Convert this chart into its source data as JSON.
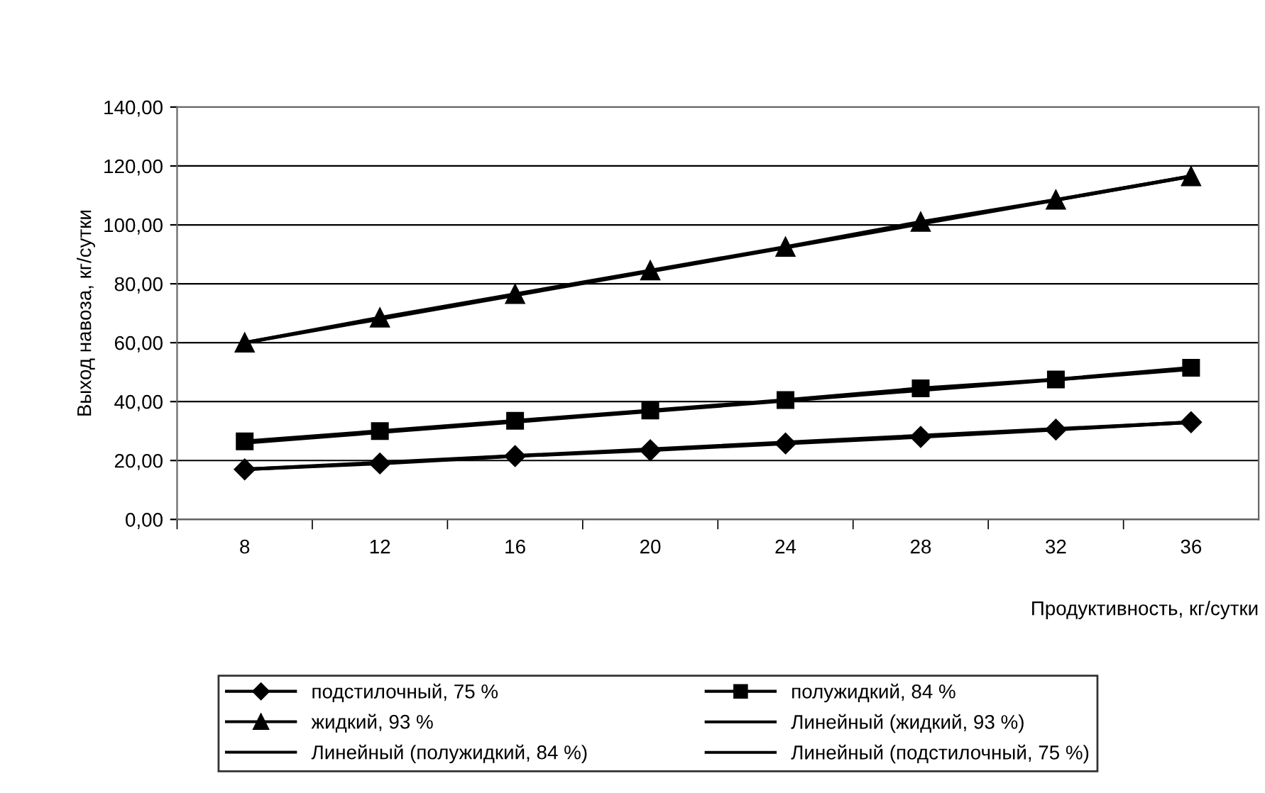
{
  "chart_data": {
    "type": "line",
    "xlabel": "Продуктивность, кг/сутки",
    "ylabel": "Выход навоза, кг/сутки",
    "categories": [
      "8",
      "12",
      "16",
      "20",
      "24",
      "28",
      "32",
      "36"
    ],
    "ylim": [
      0,
      140
    ],
    "yticks": [
      {
        "value": 0,
        "label": "0,00"
      },
      {
        "value": 20,
        "label": "20,00"
      },
      {
        "value": 40,
        "label": "40,00"
      },
      {
        "value": 60,
        "label": "60,00"
      },
      {
        "value": 80,
        "label": "80,00"
      },
      {
        "value": 100,
        "label": "100,00"
      },
      {
        "value": 120,
        "label": "120,00"
      },
      {
        "value": 140,
        "label": "140,00"
      }
    ],
    "grid": "y",
    "legend": "bottom",
    "series": [
      {
        "name": "подстилочный, 75 %",
        "color": "#000000",
        "marker": "diamond",
        "values": [
          17,
          19,
          21.5,
          23.5,
          25.8,
          28,
          30.5,
          33
        ]
      },
      {
        "name": "полужидкий, 84 %",
        "color": "#000000",
        "marker": "square",
        "values": [
          26.5,
          30,
          33.5,
          37,
          40.5,
          44.5,
          47.5,
          51.5
        ]
      },
      {
        "name": "жидкий, 93 %",
        "color": "#000000",
        "marker": "triangle",
        "values": [
          60,
          68.5,
          76.5,
          84.5,
          92.5,
          101,
          108.5,
          116.5
        ]
      },
      {
        "name": "Линейный (жидкий, 93 %)",
        "color": "#000000",
        "x": [
          "8",
          "36"
        ],
        "values": [
          60,
          116.5
        ]
      },
      {
        "name": "Линейный (полужидкий, 84 %)",
        "color": "#000000",
        "x": [
          "8",
          "36"
        ],
        "values": [
          26,
          51
        ]
      },
      {
        "name": "Линейный (подстилочный, 75 %)",
        "color": "#000000",
        "x": [
          "8",
          "36"
        ],
        "values": [
          17,
          33
        ]
      }
    ]
  }
}
